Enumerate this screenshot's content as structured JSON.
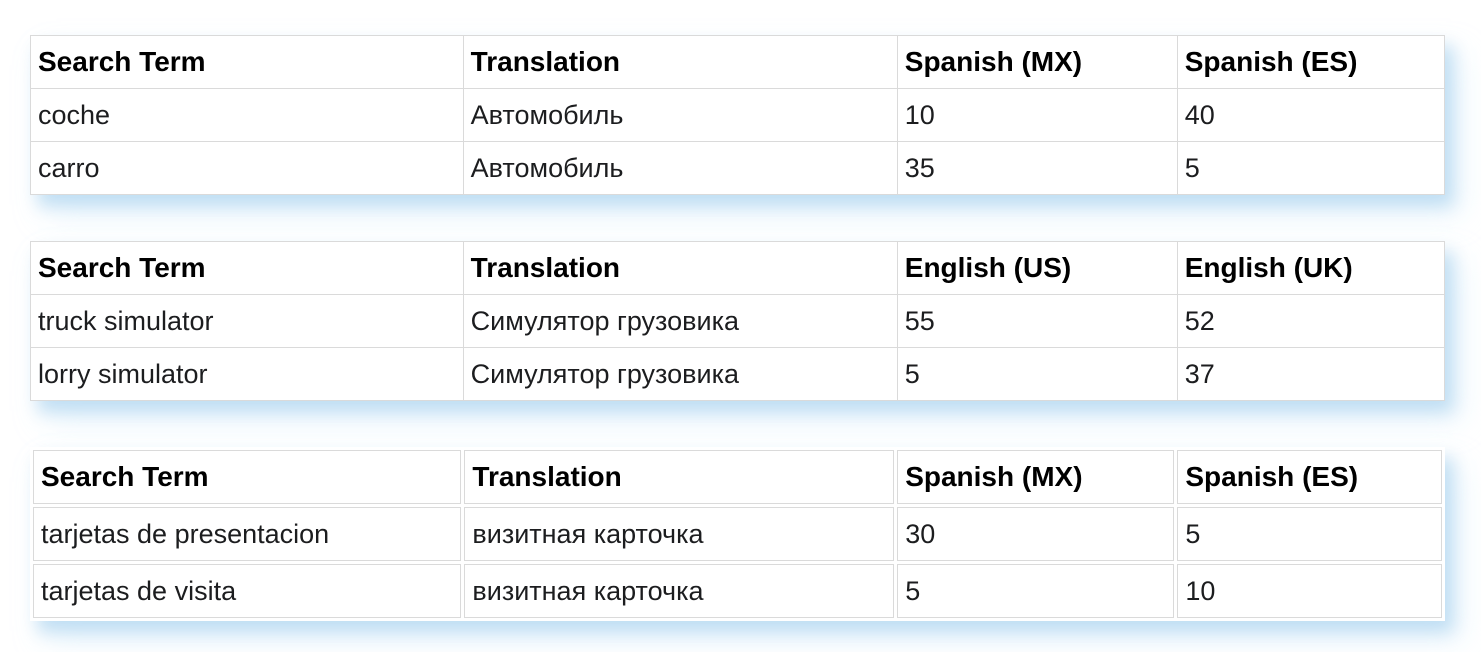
{
  "style": {
    "page_background": "#ffffff",
    "cell_border_color": "#dadada",
    "shadow_color": "#cde3f4",
    "header_text_color": "#000000",
    "body_text_color": "#1c1d1f"
  },
  "tables": [
    {
      "separated": false,
      "columns": [
        "Search Term",
        "Translation",
        "Spanish (MX)",
        "Spanish (ES)"
      ],
      "rows": [
        [
          "coche",
          "Автомобиль",
          "10",
          "40"
        ],
        [
          "carro",
          "Автомобиль",
          "35",
          "5"
        ]
      ]
    },
    {
      "separated": false,
      "columns": [
        "Search Term",
        "Translation",
        "English (US)",
        "English (UK)"
      ],
      "rows": [
        [
          "truck simulator",
          "Симулятор грузовика",
          "55",
          "52"
        ],
        [
          "lorry simulator",
          "Симулятор грузовика",
          "5",
          "37"
        ]
      ]
    },
    {
      "separated": true,
      "columns": [
        "Search Term",
        "Translation",
        "Spanish (MX)",
        "Spanish (ES)"
      ],
      "rows": [
        [
          "tarjetas de presentacion",
          "визитная карточка",
          "30",
          "5"
        ],
        [
          "tarjetas de visita",
          "визитная карточка",
          "5",
          "10"
        ]
      ]
    }
  ]
}
